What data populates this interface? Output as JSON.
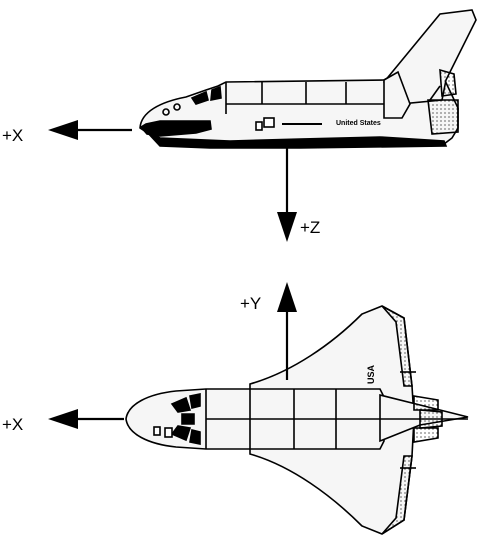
{
  "axes": {
    "side_view_x": "+X",
    "side_view_z": "+Z",
    "top_view_y": "+Y",
    "top_view_x": "+X"
  },
  "markings": {
    "side_text": "United States",
    "wing_text": "USA"
  },
  "colors": {
    "ink": "#000000",
    "background": "#ffffff",
    "hull": "#f6f6f6"
  }
}
